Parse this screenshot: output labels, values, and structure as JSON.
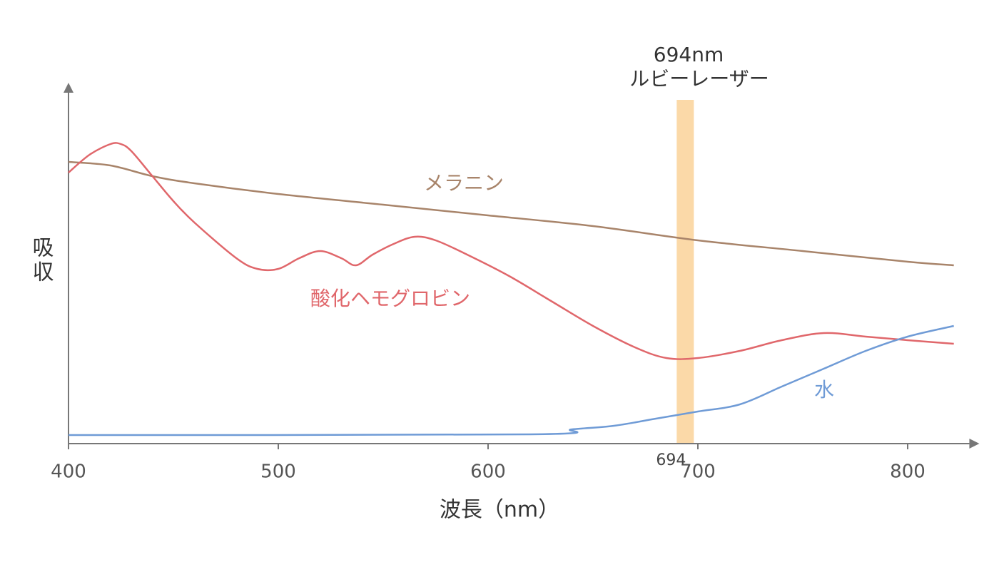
{
  "chart_data": {
    "type": "line",
    "xlabel": "波長（nm）",
    "ylabel": "吸収",
    "annotation": [
      "694nm",
      "ルビーレーザー"
    ],
    "highlight_x": 694,
    "highlight_color": "#fbd9a8",
    "xlim": [
      400,
      826
    ],
    "ylim": [
      0,
      100
    ],
    "xticks": [
      400,
      500,
      600,
      700,
      800
    ],
    "series": [
      {
        "name": "メラニン",
        "color": "#a8846a",
        "x": [
          400,
          420,
          440,
          460,
          500,
          550,
          600,
          650,
          700,
          750,
          800,
          822
        ],
        "values": [
          79,
          78,
          75,
          73,
          70,
          67,
          64,
          61,
          57,
          54,
          51,
          50
        ]
      },
      {
        "name": "酸化ヘモグロビン",
        "color": "#e0676b",
        "x": [
          400,
          410,
          420,
          425,
          430,
          440,
          450,
          460,
          480,
          490,
          500,
          510,
          520,
          530,
          537,
          545,
          555,
          565,
          575,
          590,
          610,
          630,
          650,
          670,
          685,
          700,
          720,
          740,
          760,
          780,
          800,
          822
        ],
        "values": [
          76,
          81,
          84,
          84,
          82,
          75,
          68,
          62,
          52,
          49,
          49,
          52,
          54,
          52,
          50,
          53,
          56,
          58,
          57,
          53,
          47,
          40,
          33,
          27,
          24,
          24,
          26,
          29,
          31,
          30,
          29,
          28
        ]
      },
      {
        "name": "水",
        "color": "#6f9bd6",
        "x": [
          400,
          620,
          640,
          660,
          680,
          700,
          720,
          740,
          760,
          780,
          800,
          822
        ],
        "values": [
          2.4,
          2.6,
          4,
          5,
          7,
          9,
          11,
          16,
          21,
          26,
          30,
          33
        ]
      }
    ]
  }
}
